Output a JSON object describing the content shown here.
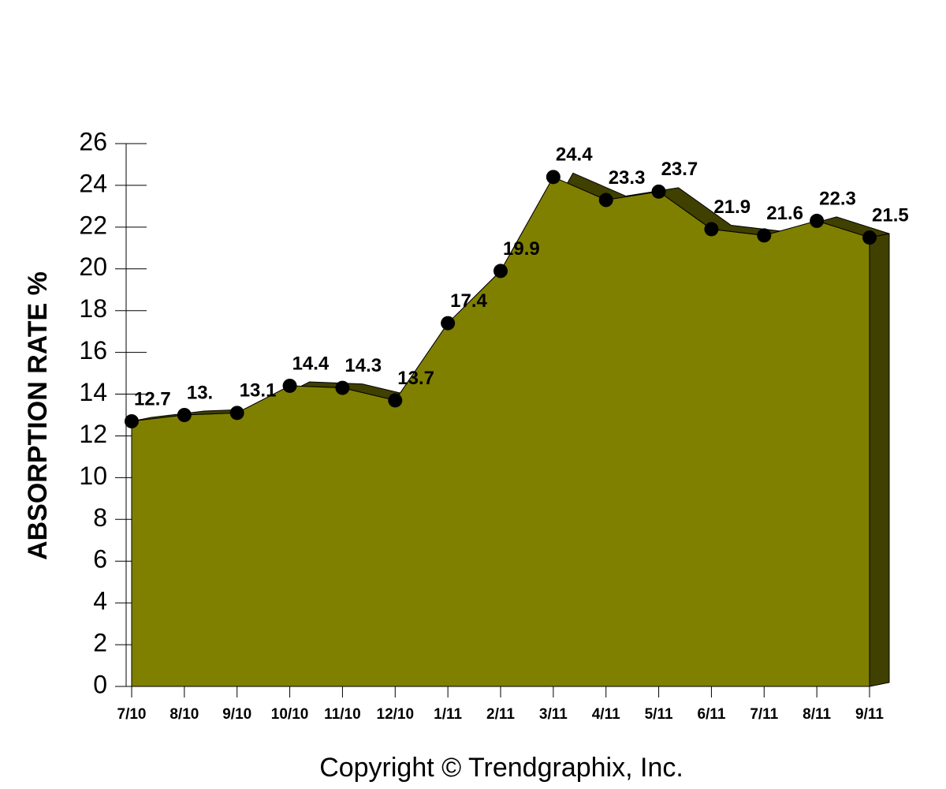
{
  "chart_data": {
    "type": "area",
    "y_label": "ABSORPTION RATE %",
    "footer": "Copyright © Trendgraphix, Inc.",
    "categories": [
      "7/10",
      "8/10",
      "9/10",
      "10/10",
      "11/10",
      "12/10",
      "1/11",
      "2/11",
      "3/11",
      "4/11",
      "5/11",
      "6/11",
      "7/11",
      "8/11",
      "9/11"
    ],
    "values": [
      12.7,
      13,
      13.1,
      14.4,
      14.3,
      13.7,
      17.4,
      19.9,
      24.4,
      23.3,
      23.7,
      21.9,
      21.6,
      22.3,
      21.5
    ],
    "value_labels": [
      "12.7",
      "13.",
      "13.1",
      "14.4",
      "14.3",
      "13.7",
      "17.4",
      "19.9",
      "24.4",
      "23.3",
      "23.7",
      "21.9",
      "21.6",
      "22.3",
      "21.5"
    ],
    "color": "#808000",
    "ylim": [
      0,
      26
    ],
    "yticks": [
      0,
      2,
      4,
      6,
      8,
      10,
      12,
      14,
      16,
      18,
      20,
      22,
      24,
      26
    ]
  }
}
